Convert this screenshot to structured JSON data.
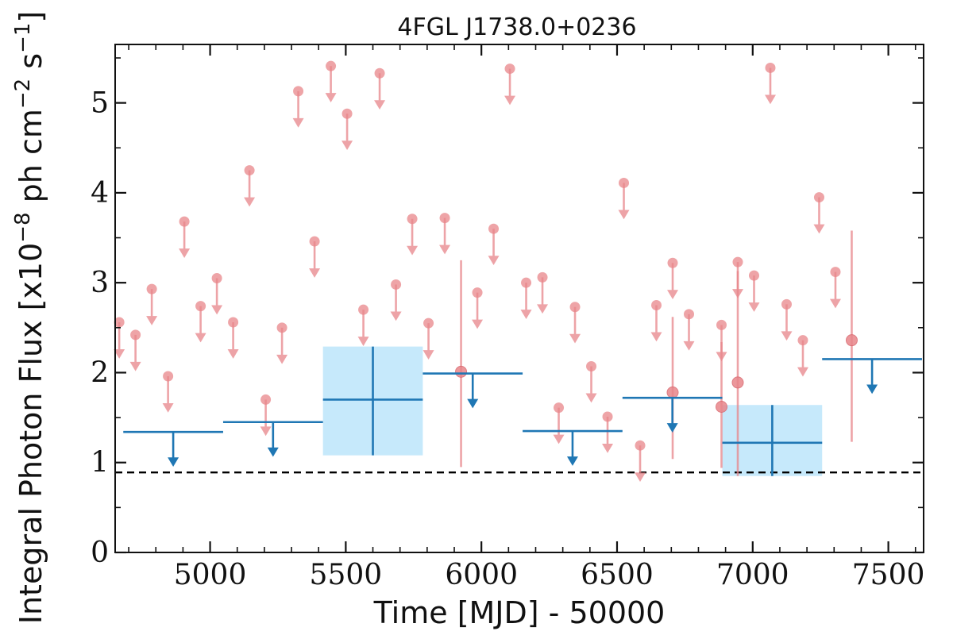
{
  "chart_data": {
    "type": "scatter",
    "title": "4FGL J1738.0+0236",
    "xlabel": "Time [MJD] - 50000",
    "ylabel": "Integral Photon Flux [x10",
    "ylabel_exp": "−8",
    "ylabel_unit": " ph cm",
    "ylabel_exp2": "−2",
    "ylabel_unit2": " s",
    "ylabel_exp3": "−1",
    "ylabel_end": "]",
    "xlim": [
      4650,
      7630
    ],
    "ylim": [
      0,
      5.65
    ],
    "x_ticks": [
      {
        "value": 5000,
        "label": "5000"
      },
      {
        "value": 5500,
        "label": "5500"
      },
      {
        "value": 6000,
        "label": "6000"
      },
      {
        "value": 6500,
        "label": "6500"
      },
      {
        "value": 7000,
        "label": "7000"
      },
      {
        "value": 7500,
        "label": "7500"
      }
    ],
    "y_ticks": [
      {
        "value": 0,
        "label": "0"
      },
      {
        "value": 1,
        "label": "1"
      },
      {
        "value": 2,
        "label": "2"
      },
      {
        "value": 3,
        "label": "3"
      },
      {
        "value": 4,
        "label": "4"
      },
      {
        "value": 5,
        "label": "5"
      }
    ],
    "x_minor_step": 100,
    "y_minor_step": 0.5,
    "grid": false,
    "reference_line": {
      "y": 0.89,
      "style": "dashed"
    },
    "colors": {
      "monthly": "#e8858a",
      "binned": "#1f77b4",
      "band": "#c6e9fb",
      "reference": "#000000"
    },
    "series": [
      {
        "kind": "upper_limits",
        "style": "monthly",
        "points": [
          {
            "x": 4665,
            "y": 2.56
          },
          {
            "x": 4725,
            "y": 2.42
          },
          {
            "x": 4785,
            "y": 2.93
          },
          {
            "x": 4845,
            "y": 1.96
          },
          {
            "x": 4905,
            "y": 3.68
          },
          {
            "x": 4965,
            "y": 2.74
          },
          {
            "x": 5025,
            "y": 3.05
          },
          {
            "x": 5085,
            "y": 2.56
          },
          {
            "x": 5145,
            "y": 4.25
          },
          {
            "x": 5205,
            "y": 1.7
          },
          {
            "x": 5265,
            "y": 2.5
          },
          {
            "x": 5325,
            "y": 5.13
          },
          {
            "x": 5385,
            "y": 3.46
          },
          {
            "x": 5445,
            "y": 5.41
          },
          {
            "x": 5505,
            "y": 4.88
          },
          {
            "x": 5565,
            "y": 2.7
          },
          {
            "x": 5625,
            "y": 5.33
          },
          {
            "x": 5685,
            "y": 2.98
          },
          {
            "x": 5745,
            "y": 3.71
          },
          {
            "x": 5805,
            "y": 2.55
          },
          {
            "x": 5865,
            "y": 3.72
          },
          {
            "x": 5985,
            "y": 2.89
          },
          {
            "x": 6045,
            "y": 3.6
          },
          {
            "x": 6105,
            "y": 5.38
          },
          {
            "x": 6165,
            "y": 3.0
          },
          {
            "x": 6225,
            "y": 3.06
          },
          {
            "x": 6285,
            "y": 1.61
          },
          {
            "x": 6345,
            "y": 2.73
          },
          {
            "x": 6405,
            "y": 2.07
          },
          {
            "x": 6465,
            "y": 1.51
          },
          {
            "x": 6525,
            "y": 4.11
          },
          {
            "x": 6585,
            "y": 1.19
          },
          {
            "x": 6645,
            "y": 2.75
          },
          {
            "x": 6705,
            "y": 3.22
          },
          {
            "x": 6765,
            "y": 2.65
          },
          {
            "x": 6885,
            "y": 2.53
          },
          {
            "x": 6945,
            "y": 3.23
          },
          {
            "x": 7005,
            "y": 3.08
          },
          {
            "x": 7065,
            "y": 5.39
          },
          {
            "x": 7125,
            "y": 2.76
          },
          {
            "x": 7185,
            "y": 2.36
          },
          {
            "x": 7245,
            "y": 3.95
          },
          {
            "x": 7305,
            "y": 3.12
          }
        ]
      },
      {
        "kind": "detections",
        "style": "monthly",
        "points": [
          {
            "x": 5925,
            "y": 2.01,
            "ylo": 0.95,
            "yhi": 3.25
          },
          {
            "x": 6705,
            "y": 1.78,
            "ylo": 1.04,
            "yhi": 2.62
          },
          {
            "x": 6885,
            "y": 1.62,
            "ylo": 0.94,
            "yhi": 2.34
          },
          {
            "x": 6945,
            "y": 1.89,
            "ylo": 0.85,
            "yhi": 3.13
          },
          {
            "x": 7365,
            "y": 2.36,
            "ylo": 1.23,
            "yhi": 3.58
          }
        ]
      },
      {
        "kind": "binned_upper_limits",
        "style": "binned",
        "points": [
          {
            "x0": 4680,
            "x1": 5048,
            "y": 1.34
          },
          {
            "x0": 5048,
            "x1": 5416,
            "y": 1.45
          },
          {
            "x0": 5784,
            "x1": 6152,
            "y": 1.99
          },
          {
            "x0": 6152,
            "x1": 6520,
            "y": 1.35
          },
          {
            "x0": 6520,
            "x1": 6888,
            "y": 1.72
          },
          {
            "x0": 7256,
            "x1": 7624,
            "y": 2.15
          }
        ]
      },
      {
        "kind": "binned_detections",
        "style": "binned",
        "points": [
          {
            "x0": 5416,
            "x1": 5784,
            "y": 1.7,
            "ylo": 1.08,
            "yhi": 2.29
          },
          {
            "x0": 6888,
            "x1": 7256,
            "y": 1.22,
            "ylo": 0.85,
            "yhi": 1.64
          }
        ]
      }
    ]
  }
}
